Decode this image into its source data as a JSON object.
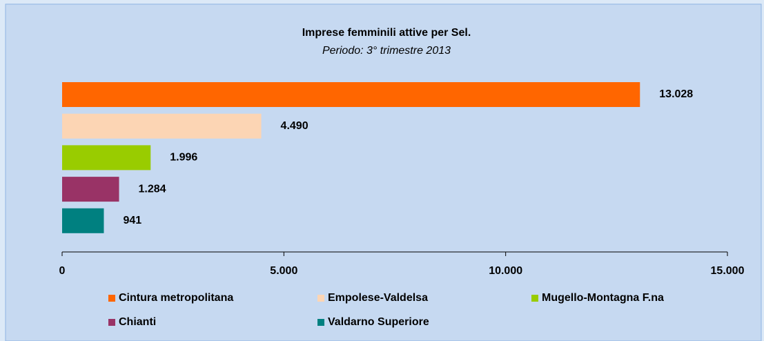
{
  "chart_data": {
    "type": "bar",
    "orientation": "horizontal",
    "title": "Imprese femminili  attive per Sel.",
    "subtitle": "Periodo: 3° trimestre 2013",
    "series": [
      {
        "name": "Cintura metropolitana",
        "color": "#ff6600",
        "values": [
          13028
        ],
        "value_labels": [
          "13.028"
        ]
      },
      {
        "name": "Empolese-Valdelsa",
        "color": "#fcd5b4",
        "values": [
          4490
        ],
        "value_labels": [
          "4.490"
        ]
      },
      {
        "name": "Mugello-Montagna F.na",
        "color": "#99cc00",
        "values": [
          1996
        ],
        "value_labels": [
          "1.996"
        ]
      },
      {
        "name": "Chianti",
        "color": "#993366",
        "values": [
          1284
        ],
        "value_labels": [
          "1.284"
        ]
      },
      {
        "name": "Valdarno Superiore",
        "color": "#008080",
        "values": [
          941
        ],
        "value_labels": [
          "941"
        ]
      }
    ],
    "xlim": [
      0,
      15000
    ],
    "xticks": [
      0,
      {
        "value": 5000,
        "label": "5.000"
      },
      {
        "value": 10000,
        "label": "10.000"
      },
      {
        "value": 15000,
        "label": "15.000"
      }
    ],
    "legend": "bottom"
  }
}
